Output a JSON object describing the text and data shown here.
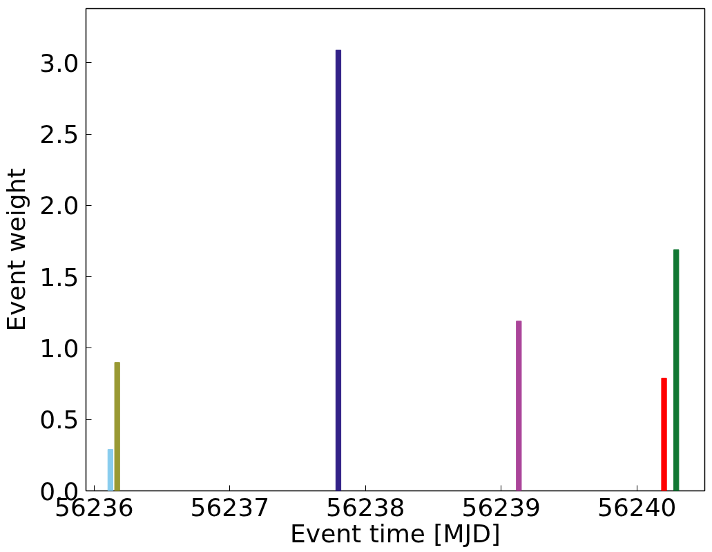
{
  "chart_data": {
    "type": "bar",
    "xlabel": "Event time [MJD]",
    "ylabel": "Event weight",
    "x": [
      56236.12,
      56236.17,
      56237.8,
      56239.13,
      56240.2,
      56240.29
    ],
    "values": [
      0.29,
      0.9,
      3.09,
      1.19,
      0.79,
      1.69
    ],
    "colors": [
      "#88ccee",
      "#999933",
      "#332288",
      "#aa4499",
      "#ff0000",
      "#117733"
    ],
    "xlim": [
      56235.94,
      56240.5
    ],
    "xticks": [
      56236,
      56237,
      56238,
      56239,
      56240
    ],
    "ylim": [
      0,
      3.38
    ],
    "yticks": [
      {
        "value": 0,
        "label": "0.0"
      },
      {
        "value": 0.5,
        "label": "0.5"
      },
      {
        "value": 1,
        "label": "1.0"
      },
      {
        "value": 1.5,
        "label": "1.5"
      },
      {
        "value": 2,
        "label": "2.0"
      },
      {
        "value": 2.5,
        "label": "2.5"
      },
      {
        "value": 3,
        "label": "3.0"
      }
    ],
    "grid": false
  }
}
